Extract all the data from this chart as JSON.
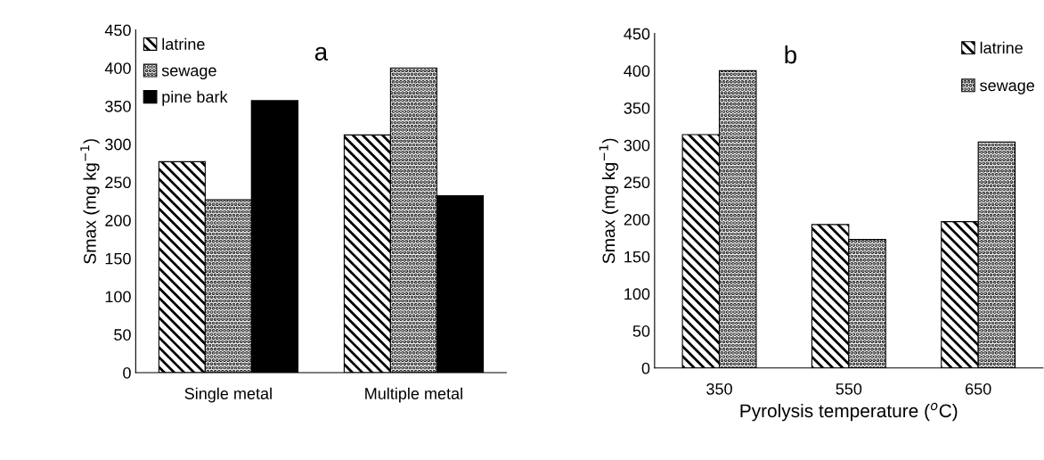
{
  "chart_data": [
    {
      "type": "bar",
      "title": "a",
      "ylabel": "Smax (mg kg$^{−1}$)",
      "categories": [
        "Single metal",
        "Multiple metal"
      ],
      "series": [
        {
          "name": "latrine",
          "color": "#000000",
          "values": [
            277,
            312
          ]
        },
        {
          "name": "sewage",
          "color": "#000000",
          "values": [
            227,
            400
          ]
        },
        {
          "name": "pine bark",
          "color": "#000000",
          "values": [
            357,
            232
          ]
        }
      ],
      "ylim": [
        0,
        450
      ],
      "yticks": [
        0,
        50,
        100,
        150,
        200,
        250,
        300,
        350,
        400,
        450
      ],
      "legend": "top left",
      "grid": false
    },
    {
      "type": "bar",
      "title": "b",
      "ylabel": "Smax (mg kg$^{−1}$)",
      "xlabel": "Pyrolysis temperature ($^{o}$C)",
      "categories": [
        "350",
        "550",
        "650"
      ],
      "series": [
        {
          "name": "latrine",
          "color": "#000000",
          "values": [
            314,
            193,
            197
          ]
        },
        {
          "name": "sewage",
          "color": "#000000",
          "values": [
            400,
            173,
            304
          ]
        }
      ],
      "ylim": [
        0,
        450
      ],
      "yticks": [
        0,
        50,
        100,
        150,
        200,
        250,
        300,
        350,
        400,
        450
      ],
      "legend": "top right",
      "grid": false
    }
  ]
}
